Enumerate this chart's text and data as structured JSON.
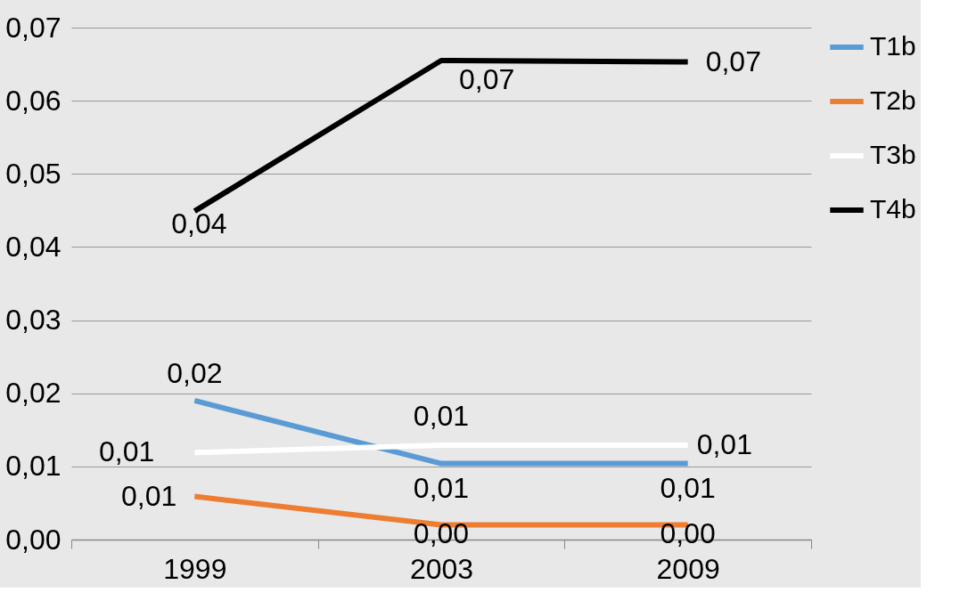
{
  "chart_data": {
    "type": "line",
    "categories": [
      "1999",
      "2003",
      "2009"
    ],
    "series": [
      {
        "name": "T1b",
        "color": "#5b9bd5",
        "values": [
          0.019,
          0.0104,
          0.0104
        ],
        "value_labels": [
          "0,02",
          "0,01",
          "0,01"
        ]
      },
      {
        "name": "T2b",
        "color": "#ed7d31",
        "values": [
          0.0059,
          0.002,
          0.002
        ],
        "value_labels": [
          "0,01",
          "0,00",
          "0,00"
        ]
      },
      {
        "name": "T3b",
        "color": "#ffffff",
        "values": [
          0.0119,
          0.0129,
          0.0129
        ],
        "value_labels": [
          "0,01",
          "0,01",
          "0,01"
        ]
      },
      {
        "name": "T4b",
        "color": "#000000",
        "values": [
          0.0449,
          0.0655,
          0.0653
        ],
        "value_labels": [
          "0,04",
          "0,07",
          "0,07"
        ]
      }
    ],
    "ylim": [
      0,
      0.07
    ],
    "yticks": [
      {
        "value": 0,
        "label": "0,00"
      },
      {
        "value": 0.01,
        "label": "0,01"
      },
      {
        "value": 0.02,
        "label": "0,02"
      },
      {
        "value": 0.03,
        "label": "0,03"
      },
      {
        "value": 0.04,
        "label": "0,04"
      },
      {
        "value": 0.05,
        "label": "0,05"
      },
      {
        "value": 0.06,
        "label": "0,06"
      },
      {
        "value": 0.07,
        "label": "0,07"
      }
    ],
    "grid": "y",
    "legend": "right",
    "marker": "none",
    "line_style": "solid"
  }
}
